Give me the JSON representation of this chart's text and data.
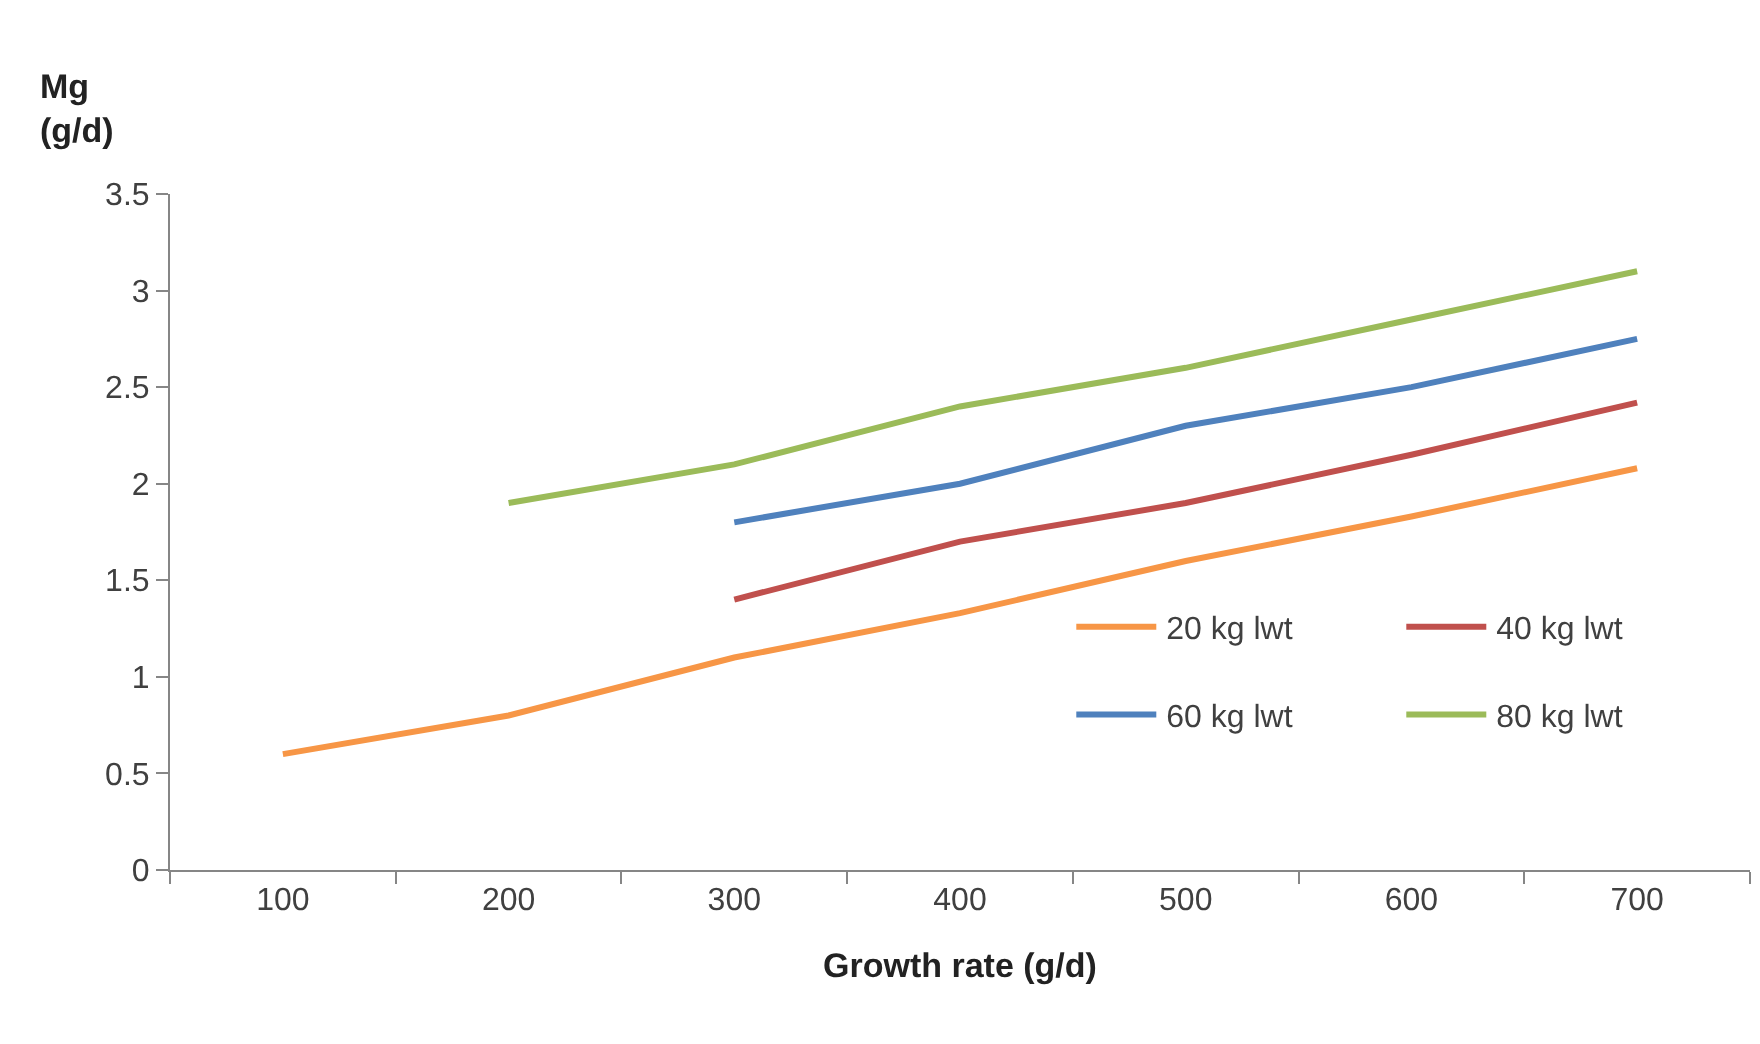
{
  "chart_data": {
    "type": "line",
    "xlabel": "Growth rate (g/d)",
    "ylabel": "Mg\n(g/d)",
    "categories": [
      "100",
      "200",
      "300",
      "400",
      "500",
      "600",
      "700"
    ],
    "series": [
      {
        "name": "20 kg lwt",
        "color": "#f79646",
        "values": [
          0.6,
          0.8,
          1.1,
          1.33,
          1.6,
          1.83,
          2.08
        ]
      },
      {
        "name": "40 kg lwt",
        "color": "#c0504d",
        "values": [
          null,
          null,
          1.4,
          1.7,
          1.9,
          2.15,
          2.42
        ]
      },
      {
        "name": "60 kg lwt",
        "color": "#4f81bd",
        "values": [
          null,
          null,
          1.8,
          2.0,
          2.3,
          2.5,
          2.75
        ]
      },
      {
        "name": "80 kg lwt",
        "color": "#9bbb59",
        "values": [
          null,
          1.9,
          2.1,
          2.4,
          2.6,
          2.85,
          3.1
        ]
      }
    ],
    "ylim": [
      0,
      3.5
    ],
    "yticks": [
      0,
      0.5,
      1,
      1.5,
      2,
      2.5,
      3,
      3.5
    ],
    "grid": false,
    "legend": "bottom right",
    "marker": "none",
    "line_style": "solid"
  }
}
